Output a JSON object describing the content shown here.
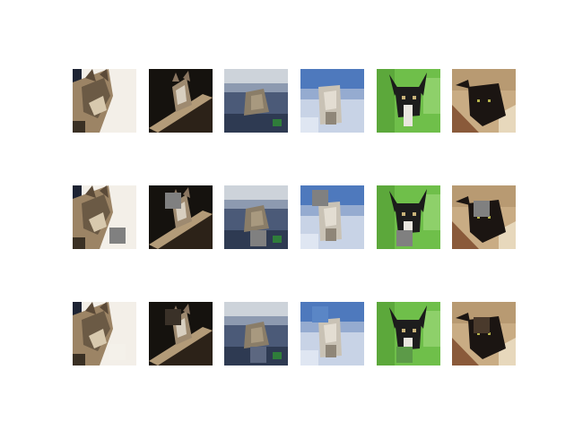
{
  "figure": {
    "rows": [
      {
        "kind": "original",
        "tiles": [
          {
            "subject": "cat",
            "patch": null
          },
          {
            "subject": "cat",
            "patch": null
          },
          {
            "subject": "cat",
            "patch": null
          },
          {
            "subject": "dog",
            "patch": null
          },
          {
            "subject": "dog",
            "patch": null
          },
          {
            "subject": "cat",
            "patch": null
          }
        ]
      },
      {
        "kind": "masked",
        "tiles": [
          {
            "subject": "cat",
            "patch": "gray"
          },
          {
            "subject": "cat",
            "patch": "gray"
          },
          {
            "subject": "cat",
            "patch": "gray"
          },
          {
            "subject": "dog",
            "patch": "gray"
          },
          {
            "subject": "dog",
            "patch": "gray"
          },
          {
            "subject": "cat",
            "patch": "gray"
          }
        ]
      },
      {
        "kind": "reconstructed",
        "tiles": [
          {
            "subject": "cat",
            "patch": "filled"
          },
          {
            "subject": "cat",
            "patch": "filled"
          },
          {
            "subject": "cat",
            "patch": "filled"
          },
          {
            "subject": "dog",
            "patch": "filled"
          },
          {
            "subject": "dog",
            "patch": "filled"
          },
          {
            "subject": "cat",
            "patch": "filled"
          }
        ]
      }
    ],
    "colors": {
      "mask_patch": "#808080",
      "background": "#ffffff"
    }
  }
}
